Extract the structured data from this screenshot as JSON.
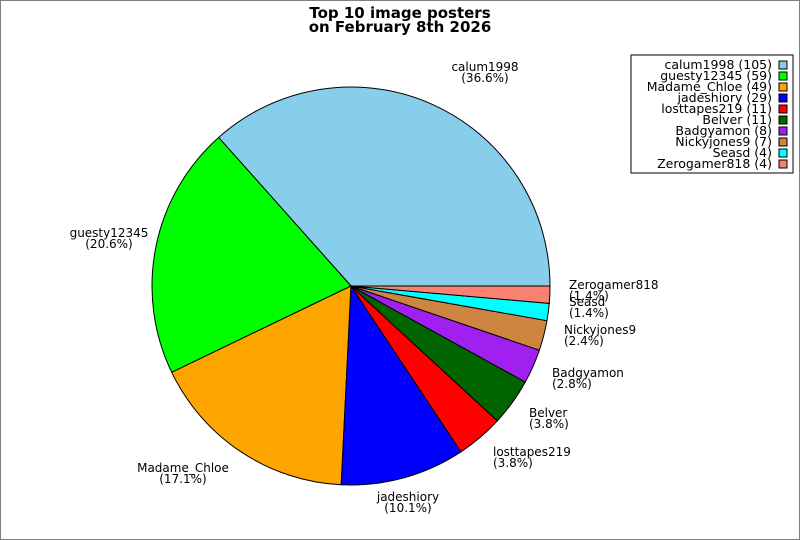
{
  "chart_data": {
    "type": "pie",
    "title_lines": [
      "Top 10 image posters",
      "on February 8th 2026"
    ],
    "legend_position": "top-right",
    "slices": [
      {
        "name": "calum1998",
        "value": 105,
        "percent_label": "(36.6%)",
        "legend_label": "calum1998 (105)",
        "color": "#87CEEB"
      },
      {
        "name": "guesty12345",
        "value": 59,
        "percent_label": "(20.6%)",
        "legend_label": "guesty12345 (59)",
        "color": "#00FF00"
      },
      {
        "name": "Madame_Chloe",
        "value": 49,
        "percent_label": "(17.1%)",
        "legend_label": "Madame_Chloe (49)",
        "color": "#FFA500"
      },
      {
        "name": "jadeshiory",
        "value": 29,
        "percent_label": "(10.1%)",
        "legend_label": "jadeshiory (29)",
        "color": "#0000FF"
      },
      {
        "name": "losttapes219",
        "value": 11,
        "percent_label": "(3.8%)",
        "legend_label": "losttapes219 (11)",
        "color": "#FF0000"
      },
      {
        "name": "Belver",
        "value": 11,
        "percent_label": "(3.8%)",
        "legend_label": "Belver (11)",
        "color": "#006400"
      },
      {
        "name": "Badgyamon",
        "value": 8,
        "percent_label": "(2.8%)",
        "legend_label": "Badgyamon (8)",
        "color": "#A020F0"
      },
      {
        "name": "Nickyjones9",
        "value": 7,
        "percent_label": "(2.4%)",
        "legend_label": "Nickyjones9 (7)",
        "color": "#CD853F"
      },
      {
        "name": "Seasd",
        "value": 4,
        "percent_label": "(1.4%)",
        "legend_label": "Seasd (4)",
        "color": "#00FFFF"
      },
      {
        "name": "Zerogamer818",
        "value": 4,
        "percent_label": "(1.4%)",
        "legend_label": "Zerogamer818 (4)",
        "color": "#FA8072"
      }
    ]
  }
}
